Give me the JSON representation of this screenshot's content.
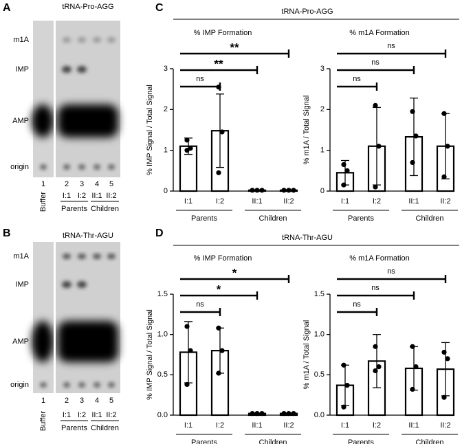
{
  "gels": [
    {
      "letter": "A",
      "title": "tRNA-Pro-AGG",
      "rows": [
        "m1A",
        "IMP",
        "AMP",
        "origin"
      ],
      "lanes": [
        "1",
        "2",
        "3",
        "4",
        "5"
      ],
      "samples": [
        "Buffer",
        "I:1",
        "I:2",
        "II:1",
        "II:2"
      ],
      "groups": [
        "Parents",
        "Children"
      ]
    },
    {
      "letter": "B",
      "title": "tRNA-Thr-AGU",
      "rows": [
        "m1A",
        "IMP",
        "AMP",
        "origin"
      ],
      "lanes": [
        "1",
        "2",
        "3",
        "4",
        "5"
      ],
      "samples": [
        "Buffer",
        "I:1",
        "I:2",
        "II:1",
        "II:2"
      ],
      "groups": [
        "Parents",
        "Children"
      ]
    }
  ],
  "panels": [
    {
      "letter": "C",
      "title": "tRNA-Pro-AGG"
    },
    {
      "letter": "D",
      "title": "tRNA-Thr-AGU"
    }
  ],
  "chart_data": [
    {
      "type": "bar",
      "title": "% IMP Formation",
      "ylabel": "% IMP Signal / Total Signal",
      "categories": [
        "I:1",
        "I:2",
        "II:1",
        "II:2"
      ],
      "groups": [
        {
          "name": "Parents",
          "categories": [
            "I:1",
            "I:2"
          ]
        },
        {
          "name": "Children",
          "categories": [
            "II:1",
            "II:2"
          ]
        }
      ],
      "values": [
        1.1,
        1.48,
        0.02,
        0.02
      ],
      "errors": [
        0.2,
        0.9,
        0,
        0
      ],
      "points": [
        [
          1.25,
          1.05,
          1.0
        ],
        [
          2.55,
          1.45,
          0.45
        ],
        [
          0.02,
          0.02,
          0.02
        ],
        [
          0.02,
          0.02,
          0.02
        ]
      ],
      "color": "#000000",
      "ylim": [
        0,
        3
      ],
      "yticks": [
        0,
        1,
        2,
        3
      ],
      "comparisons": [
        {
          "label": "ns",
          "between": [
            "I:1",
            "I:2"
          ]
        },
        {
          "label": "**",
          "between": [
            "I:1",
            "II:1"
          ]
        },
        {
          "label": "**",
          "between": [
            "I:1",
            "II:2"
          ]
        }
      ]
    },
    {
      "type": "bar",
      "title": "% m1A Formation",
      "ylabel": "% m1A / Total Signal",
      "categories": [
        "I:1",
        "I:2",
        "II:1",
        "II:2"
      ],
      "groups": [
        {
          "name": "Parents",
          "categories": [
            "I:1",
            "I:2"
          ]
        },
        {
          "name": "Children",
          "categories": [
            "II:1",
            "II:2"
          ]
        }
      ],
      "values": [
        0.45,
        1.1,
        1.33,
        1.1
      ],
      "errors": [
        0.3,
        0.95,
        0.95,
        0.8
      ],
      "points": [
        [
          0.65,
          0.5,
          0.15
        ],
        [
          2.1,
          1.1,
          0.1
        ],
        [
          1.95,
          1.35,
          0.7
        ],
        [
          1.9,
          1.1,
          0.35
        ]
      ],
      "color": "#000000",
      "ylim": [
        0,
        3
      ],
      "yticks": [
        0,
        1,
        2,
        3
      ],
      "comparisons": [
        {
          "label": "ns",
          "between": [
            "I:1",
            "I:2"
          ]
        },
        {
          "label": "ns",
          "between": [
            "I:1",
            "II:1"
          ]
        },
        {
          "label": "ns",
          "between": [
            "I:1",
            "II:2"
          ]
        }
      ]
    },
    {
      "type": "bar",
      "title": "% IMP Formation",
      "ylabel": "% IMP Signal / Total Signal",
      "categories": [
        "I:1",
        "I:2",
        "II:1",
        "II:2"
      ],
      "groups": [
        {
          "name": "Parents",
          "categories": [
            "I:1",
            "I:2"
          ]
        },
        {
          "name": "Children",
          "categories": [
            "II:1",
            "II:2"
          ]
        }
      ],
      "values": [
        0.78,
        0.8,
        0.02,
        0.02
      ],
      "errors": [
        0.38,
        0.28,
        0,
        0
      ],
      "points": [
        [
          1.1,
          0.8,
          0.38
        ],
        [
          1.08,
          0.8,
          0.52
        ],
        [
          0.02,
          0.02,
          0.02
        ],
        [
          0.02,
          0.02,
          0.02
        ]
      ],
      "color": "#000000",
      "ylim": [
        0,
        1.5
      ],
      "yticks": [
        {
          "value": 0,
          "label": "0.0"
        },
        {
          "value": 0.5,
          "label": "0.5"
        },
        {
          "value": 1,
          "label": "1.0"
        },
        {
          "value": 1.5,
          "label": "1.5"
        }
      ],
      "comparisons": [
        {
          "label": "ns",
          "between": [
            "I:1",
            "I:2"
          ]
        },
        {
          "label": "*",
          "between": [
            "I:1",
            "II:1"
          ]
        },
        {
          "label": "*",
          "between": [
            "I:1",
            "II:2"
          ]
        }
      ]
    },
    {
      "type": "bar",
      "title": "% m1A Formation",
      "ylabel": "% m1A / Total Signal",
      "categories": [
        "I:1",
        "I:2",
        "II:1",
        "II:2"
      ],
      "groups": [
        {
          "name": "Parents",
          "categories": [
            "I:1",
            "I:2"
          ]
        },
        {
          "name": "Children",
          "categories": [
            "II:1",
            "II:2"
          ]
        }
      ],
      "values": [
        0.37,
        0.67,
        0.58,
        0.57
      ],
      "errors": [
        0.25,
        0.33,
        0.27,
        0.33
      ],
      "points": [
        [
          0.62,
          0.37,
          0.1
        ],
        [
          0.85,
          0.6,
          0.55
        ],
        [
          0.85,
          0.6,
          0.32
        ],
        [
          0.78,
          0.7,
          0.22
        ]
      ],
      "color": "#000000",
      "ylim": [
        0,
        1.5
      ],
      "yticks": [
        {
          "value": 0,
          "label": "0.0"
        },
        {
          "value": 0.5,
          "label": "0.5"
        },
        {
          "value": 1,
          "label": "1.0"
        },
        {
          "value": 1.5,
          "label": "1.5"
        }
      ],
      "comparisons": [
        {
          "label": "ns",
          "between": [
            "I:1",
            "I:2"
          ]
        },
        {
          "label": "ns",
          "between": [
            "I:1",
            "II:1"
          ]
        },
        {
          "label": "ns",
          "between": [
            "I:1",
            "II:2"
          ]
        }
      ]
    }
  ]
}
